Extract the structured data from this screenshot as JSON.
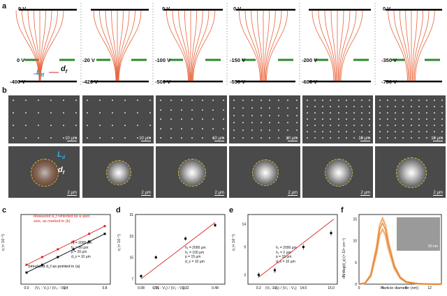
{
  "panel_labels": [
    "a",
    "b",
    "c",
    "d",
    "e",
    "f"
  ],
  "a": {
    "columns": [
      {
        "top": "0 V",
        "mid": "0 V",
        "bottom": "-400 V"
      },
      {
        "top": "",
        "mid": "",
        "bottom": "-420 V"
      },
      {
        "top": "0 V",
        "mid": "-100 V",
        "bottom": "-500 V"
      },
      {
        "top": "0 V",
        "mid": "-150 V",
        "bottom": "-550 V"
      },
      {
        "top": "",
        "mid": "-200 V",
        "bottom": "-600 V"
      },
      {
        "top": "0 V",
        "mid": "-350 V",
        "bottom": "-750 V"
      }
    ],
    "col2_mid": "-20 V",
    "Ld": "L",
    "Ld_sub": "d",
    "df": "d",
    "df_sub": "f",
    "colors": {
      "electrode": "#000000",
      "grid": "#2e8b2e",
      "trajectory": "#e8633a"
    }
  },
  "b": {
    "scale_top": "10 μm",
    "scale_bottom": "2 μm",
    "Ld": "L",
    "Ld_sub": "d",
    "df": "d",
    "df_sub": "f",
    "dots": [
      6,
      6,
      7,
      8,
      9,
      9
    ]
  },
  "c": {
    "annot_measured": "Measured d_f reflected by a spot size, as marked in (b)",
    "annot_sim": "Simulated d_f as pointed in (a)",
    "params": [
      "h₁ = 2000 μm",
      "h₂ = 50 μm",
      "p = 20 μm",
      "d_s = 10 μm"
    ],
    "xlabel": "(V₁ - V₂) / (V₂ - V₃)",
    "ylabel": "η (× 10⁻²)"
  },
  "d": {
    "params": [
      "h₁ = 2000 μm",
      "h₂ = 100 μm",
      "p = 15 μm",
      "d_s = 10 μm"
    ],
    "xlabel": "(V₁ - V₂) / (V₂ - V₃)",
    "ylabel": "η (× 10⁻²)",
    "yticks": [
      "31",
      "23",
      "15",
      "7"
    ],
    "xticks": [
      "0.08",
      "0.16",
      "0.32",
      "0.48"
    ]
  },
  "e": {
    "params": [
      "h₁ = 2000 μm",
      "h₂ = 2 μm",
      "p = 15 μm",
      "d_s = 10 μm"
    ],
    "xlabel": "(V₁ - V₂) / (V₂ - V₃)",
    "ylabel": "η (× 10⁻²)",
    "yticks": [
      "14",
      "9",
      "3"
    ],
    "xticks": [
      "0.2",
      "1.0",
      "14.0",
      "15.0"
    ]
  },
  "f": {
    "xlabel": "Particle diameter (nm)",
    "ylabel": "dN/dlog(d_p) (× 10⁴ cm⁻³)",
    "yticks": [
      "15",
      "10",
      "5",
      "0"
    ],
    "xticks": [
      "0",
      "4",
      "8",
      "12"
    ],
    "inset_scale": "50 nm"
  },
  "chart_data": [
    {
      "type": "scatter",
      "panel": "c",
      "series": [
        {
          "name": "Measured",
          "x": [
            0.0,
            0.2,
            0.4,
            0.6,
            0.8,
            1.0
          ],
          "y": [
            0.35,
            0.45,
            0.55,
            0.65,
            0.75,
            0.85
          ]
        },
        {
          "name": "Simulated",
          "x": [
            0.0,
            0.2,
            0.4,
            0.6,
            0.8,
            1.0
          ],
          "y": [
            0.25,
            0.35,
            0.45,
            0.55,
            0.65,
            0.75
          ]
        }
      ]
    },
    {
      "type": "scatter",
      "panel": "d",
      "x": [
        0.08,
        0.16,
        0.32,
        0.48
      ],
      "y": [
        8,
        15,
        22,
        27
      ]
    },
    {
      "type": "scatter",
      "panel": "e",
      "x": [
        0.2,
        1.0,
        14.0,
        15.0
      ],
      "y": [
        3,
        4,
        9,
        12
      ]
    },
    {
      "type": "line",
      "panel": "f",
      "x": [
        0,
        1,
        2,
        3,
        3.5,
        4,
        4.5,
        5,
        6,
        7,
        8,
        10,
        12,
        14
      ],
      "y": [
        0,
        0.2,
        2,
        8,
        12.5,
        14,
        12.5,
        9,
        4,
        1.5,
        0.5,
        0.1,
        0,
        0
      ]
    }
  ]
}
